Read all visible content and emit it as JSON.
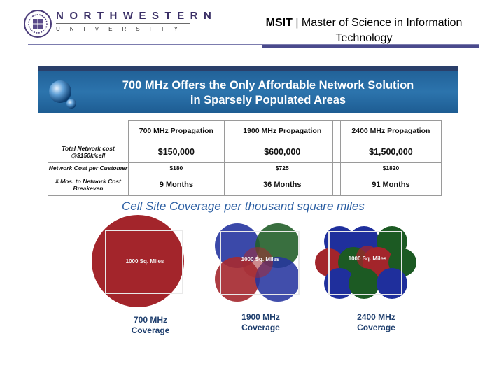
{
  "header": {
    "logo_line1": "NORTHWESTERN",
    "logo_line2": "UNIVERSITY",
    "title_bold": "MSIT",
    "title_rest": "| Master of Science in Information Technology"
  },
  "banner": {
    "title_line1": "700 MHz Offers the Only Affordable Network Solution",
    "title_line2": "in Sparsely Populated Areas"
  },
  "table": {
    "headers": [
      "700 MHz Propagation",
      "1900 MHz Propagation",
      "2400 MHz Propagation"
    ],
    "rows": [
      {
        "label": "Total Network cost @$150k/cell",
        "values": [
          "$150,000",
          "$600,000",
          "$1,500,000"
        ]
      },
      {
        "label": "Network Cost per Customer",
        "values": [
          "$180",
          "$725",
          "$1820"
        ]
      },
      {
        "label": "# Mos. to Network Cost Breakeven",
        "values": [
          "9 Months",
          "36 Months",
          "91 Months"
        ]
      }
    ]
  },
  "coverage": {
    "title": "Cell Site Coverage per thousand square miles",
    "square_label": "1000 Sq. Miles",
    "diagrams": [
      {
        "freq": "700 MHz",
        "word": "Coverage"
      },
      {
        "freq": "1900 MHz",
        "word": "Coverage"
      },
      {
        "freq": "2400 MHz",
        "word": "Coverage"
      }
    ],
    "colors": {
      "red": "#a3252b",
      "blue": "#1f2f9c",
      "green": "#1c5a23"
    }
  }
}
